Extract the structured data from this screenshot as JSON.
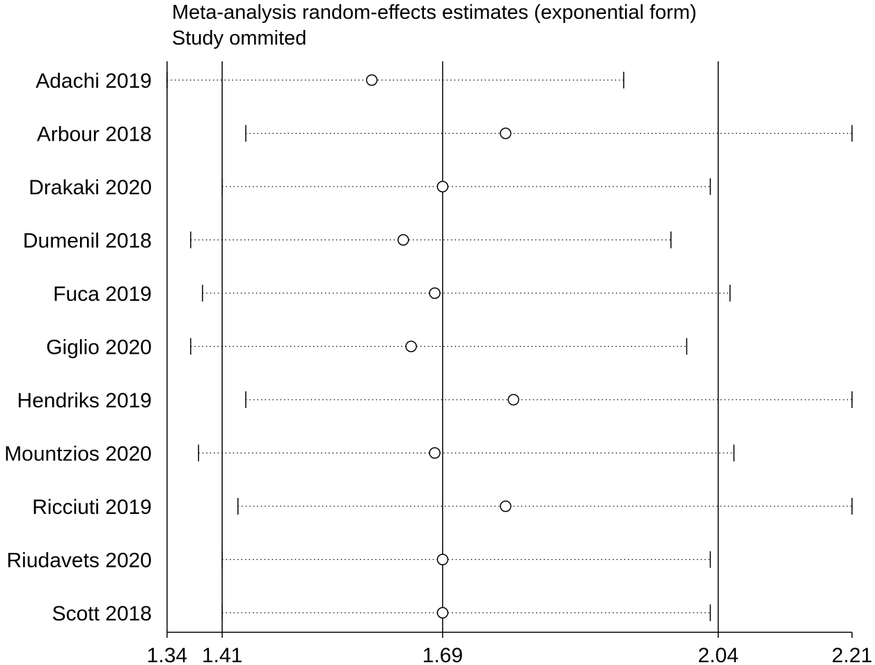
{
  "chart_data": {
    "type": "forest",
    "title": "Meta-analysis random-effects estimates (exponential form)",
    "subtitle": "Study ommited",
    "xlim": [
      1.34,
      2.21
    ],
    "xticks": [
      1.34,
      1.41,
      1.69,
      2.04,
      2.21
    ],
    "reference_lines": [
      1.41,
      1.69,
      2.04
    ],
    "studies": [
      {
        "label": "Adachi 2019",
        "estimate": 1.6,
        "lower": 1.34,
        "upper": 1.92
      },
      {
        "label": "Arbour 2018",
        "estimate": 1.77,
        "lower": 1.44,
        "upper": 2.21
      },
      {
        "label": "Drakaki 2020",
        "estimate": 1.69,
        "lower": 1.41,
        "upper": 2.03
      },
      {
        "label": "Dumenil 2018",
        "estimate": 1.64,
        "lower": 1.37,
        "upper": 1.98
      },
      {
        "label": "Fuca 2019",
        "estimate": 1.68,
        "lower": 1.385,
        "upper": 2.055
      },
      {
        "label": "Giglio 2020",
        "estimate": 1.65,
        "lower": 1.37,
        "upper": 2.0
      },
      {
        "label": "Hendriks 2019",
        "estimate": 1.78,
        "lower": 1.44,
        "upper": 2.21
      },
      {
        "label": "Mountzios 2020",
        "estimate": 1.68,
        "lower": 1.38,
        "upper": 2.06
      },
      {
        "label": "Ricciuti 2019",
        "estimate": 1.77,
        "lower": 1.43,
        "upper": 2.21
      },
      {
        "label": "Riudavets 2020",
        "estimate": 1.69,
        "lower": 1.41,
        "upper": 2.03
      },
      {
        "label": "Scott 2018",
        "estimate": 1.69,
        "lower": 1.41,
        "upper": 2.03
      }
    ]
  }
}
